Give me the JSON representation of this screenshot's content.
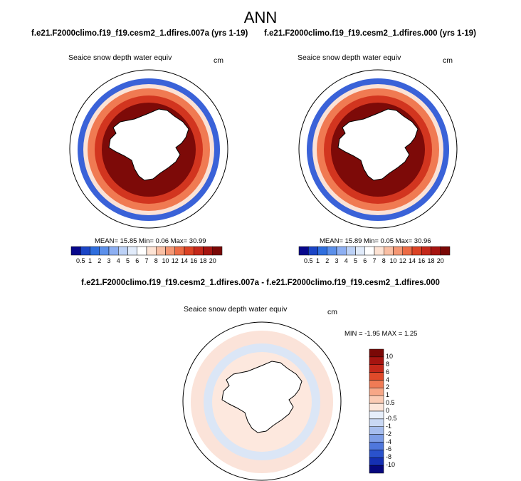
{
  "title": "ANN",
  "panels": [
    {
      "case_title": "f.e21.F2000climo.f19_f19.cesm2_1.dfires.007a (yrs 1-19)",
      "label": "Seaice snow depth water equiv",
      "units": "cm",
      "stats": {
        "mean": "15.85",
        "min": "0.06",
        "max": "30.99"
      },
      "stats_text": "MEAN=  15.85  Min=   0.06  Max=  30.99"
    },
    {
      "case_title": "f.e21.F2000climo.f19_f19.cesm2_1.dfires.000 (yrs 1-19)",
      "label": "Seaice snow depth water equiv",
      "units": "cm",
      "stats": {
        "mean": "15.89",
        "min": "0.05",
        "max": "30.96"
      },
      "stats_text": "MEAN=  15.89  Min=   0.05  Max=  30.96"
    }
  ],
  "difference": {
    "title": "f.e21.F2000climo.f19_f19.cesm2_1.dfires.007a - f.e21.F2000climo.f19_f19.cesm2_1.dfires.000",
    "label": "Seaice snow depth water equiv",
    "units": "cm",
    "stats_text": "MIN =  -1.95 MAX =   1.25"
  },
  "colorbar": {
    "labels": [
      "0.5",
      "1",
      "2",
      "3",
      "4",
      "5",
      "6",
      "7",
      "8",
      "10",
      "12",
      "14",
      "16",
      "18",
      "20"
    ],
    "colors": [
      "#08088c",
      "#1b45c6",
      "#2f6ede",
      "#5b8fea",
      "#8daff2",
      "#bcd1f6",
      "#e1ebfa",
      "#ffffff",
      "#fde3d4",
      "#f9bfa4",
      "#f49774",
      "#ec6b45",
      "#db4325",
      "#c4281a",
      "#a51410",
      "#7a0806"
    ]
  },
  "diff_colorbar": {
    "labels": [
      "10",
      "8",
      "6",
      "4",
      "2",
      "1",
      "0.5",
      "0",
      "-0.5",
      "-1",
      "-2",
      "-4",
      "-6",
      "-8",
      "-10"
    ],
    "colors": [
      "#7a0806",
      "#a51410",
      "#c4281a",
      "#e04a2a",
      "#f07b55",
      "#f7a787",
      "#fbcbb4",
      "#fde6da",
      "#e6eefa",
      "#c9d8f4",
      "#a6bdee",
      "#7d9de6",
      "#4f77dc",
      "#2a52cc",
      "#1530b3",
      "#06087e"
    ]
  }
}
